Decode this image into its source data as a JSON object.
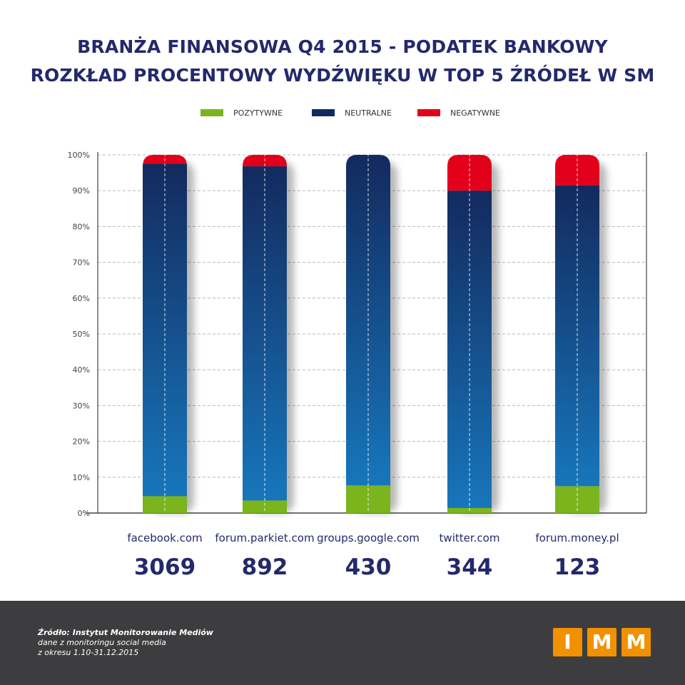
{
  "title_line1": "BRANŻA FINANSOWA Q4 2015 - PODATEK BANKOWY",
  "title_line2": "ROZKŁAD PROCENTOWY WYDŹWIĘKU W TOP 5 ŹRÓDEŁ W SM",
  "chart_data": {
    "type": "bar",
    "stacked": true,
    "categories": [
      "facebook.com",
      "forum.parkiet.com",
      "groups.google.com",
      "twitter.com",
      "forum.money.pl"
    ],
    "counts": [
      "3069",
      "892",
      "430",
      "344",
      "123"
    ],
    "series": [
      {
        "name": "POZYTYWNE",
        "values": [
          4.7,
          3.5,
          7.7,
          1.4,
          7.5
        ]
      },
      {
        "name": "NEUTRALNE",
        "values": [
          92.8,
          93.3,
          92.3,
          88.6,
          84.0
        ]
      },
      {
        "name": "NEGATYWNE",
        "values": [
          2.5,
          3.2,
          0.0,
          10.0,
          8.5
        ]
      }
    ],
    "yticks": [
      "0%",
      "10%",
      "20%",
      "30%",
      "40%",
      "50%",
      "60%",
      "70%",
      "80%",
      "90%",
      "100%"
    ],
    "ylim": [
      0,
      100
    ],
    "grid": true,
    "legend_position": "top-center"
  },
  "colors": {
    "positive": "#7ab51d",
    "neutral_top": "#132a5e",
    "neutral_bottom": "#1776bb",
    "negative": "#e2001a",
    "title": "#23296b",
    "footer": "#3d3d3f",
    "logo": "#f29100"
  },
  "source": {
    "line1": "Źródło: Instytut Monitorowanie Mediów",
    "line2": "dane z monitoringu social media",
    "line3": "z okresu 1.10-31.12.2015"
  },
  "logo": {
    "letters": [
      "I",
      "M",
      "M"
    ]
  }
}
